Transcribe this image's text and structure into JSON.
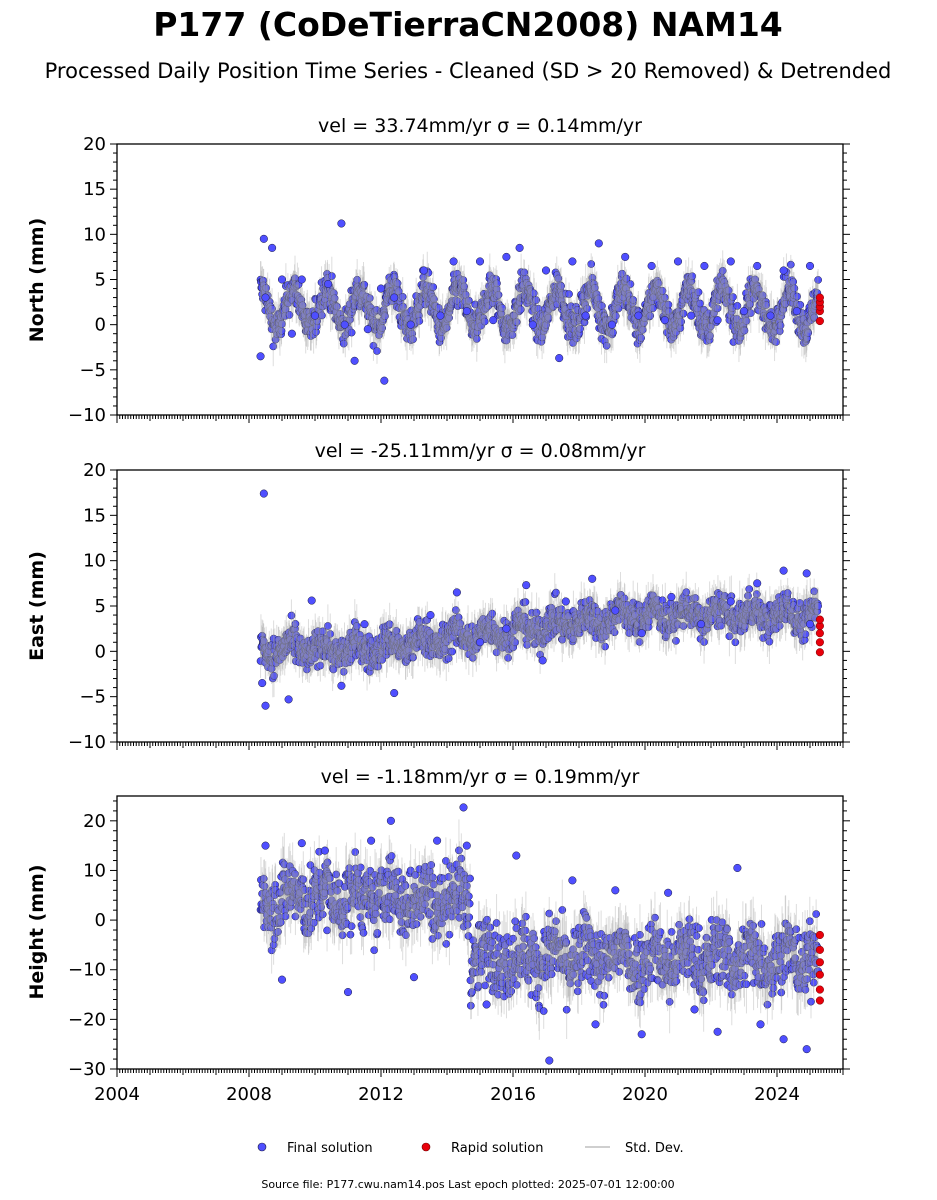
{
  "figure": {
    "title": "P177 (CoDeTierraCN2008) NAM14",
    "subtitle": "Processed Daily Position Time Series - Cleaned (SD > 20 Removed) & Detrended",
    "footer": "Source file: P177.cwu.nam14.pos  Last epoch plotted: 2025-07-01 12:00:00"
  },
  "colors": {
    "final": "#4f4fff",
    "final_edge": "#1a1a40",
    "rapid": "#e8000b",
    "stddev": "#9e9e9e"
  },
  "legend": {
    "final": "Final solution",
    "rapid": "Rapid solution",
    "stddev": "Std. Dev."
  },
  "chart_data": [
    {
      "type": "scatter",
      "title": "vel = 33.74mm/yr   σ = 0.14mm/yr",
      "ylabel": "North (mm)",
      "xlim": [
        2004,
        2026
      ],
      "ylim": [
        -10,
        20
      ],
      "yticks": [
        -10,
        -5,
        0,
        5,
        10,
        15,
        20
      ],
      "xticks": [
        2004,
        2008,
        2012,
        2016,
        2020,
        2024
      ],
      "x_tick_labels_shown": false,
      "series": [
        {
          "name": "Final solution",
          "x_range": [
            2008.35,
            2025.25
          ],
          "trend": "seasonal oscillation ~2 mm around 2 mm",
          "x": [
            2008.35,
            2008.45,
            2008.5,
            2008.7,
            2009.0,
            2009.3,
            2009.6,
            2010.0,
            2010.4,
            2010.8,
            2010.9,
            2011.2,
            2011.6,
            2012.0,
            2012.1,
            2012.4,
            2012.9,
            2013.3,
            2013.8,
            2014.2,
            2014.6,
            2015.0,
            2015.4,
            2015.8,
            2016.2,
            2016.6,
            2017.0,
            2017.4,
            2017.8,
            2018.2,
            2018.6,
            2019.0,
            2019.4,
            2019.8,
            2020.2,
            2020.6,
            2021.0,
            2021.4,
            2021.8,
            2022.2,
            2022.6,
            2023.0,
            2023.4,
            2023.8,
            2024.2,
            2024.6,
            2025.0
          ],
          "y": [
            -3.5,
            9.5,
            3.0,
            8.5,
            5.0,
            -1.0,
            5.0,
            1.0,
            4.5,
            11.2,
            0.0,
            -4.0,
            -0.5,
            4.0,
            -6.2,
            3.0,
            0.0,
            6.0,
            1.0,
            7.0,
            1.5,
            7.0,
            0.5,
            7.5,
            8.5,
            0.0,
            6.0,
            -3.7,
            7.0,
            1.0,
            9.0,
            0.0,
            7.5,
            1.0,
            6.5,
            0.5,
            7.0,
            1.0,
            6.5,
            0.5,
            7.0,
            1.5,
            6.5,
            1.0,
            6.0,
            1.5,
            6.5
          ]
        },
        {
          "name": "Rapid solution",
          "x": [
            2025.3,
            2025.3,
            2025.3,
            2025.3,
            2025.3
          ],
          "y": [
            0.4,
            1.5,
            2.0,
            2.5,
            3.0
          ]
        }
      ]
    },
    {
      "type": "scatter",
      "title": "vel = -25.11mm/yr   σ = 0.08mm/yr",
      "ylabel": "East (mm)",
      "xlim": [
        2004,
        2026
      ],
      "ylim": [
        -10,
        20
      ],
      "yticks": [
        -10,
        -5,
        0,
        5,
        10,
        15,
        20
      ],
      "xticks": [
        2004,
        2008,
        2012,
        2016,
        2020,
        2024
      ],
      "x_tick_labels_shown": false,
      "series": [
        {
          "name": "Final solution",
          "x_range": [
            2008.35,
            2025.25
          ],
          "trend": "rises from ~0 mm to ~4 mm",
          "x": [
            2008.45,
            2008.5,
            2008.4,
            2009.2,
            2009.9,
            2010.8,
            2011.5,
            2012.4,
            2013.5,
            2014.3,
            2015.0,
            2015.8,
            2016.4,
            2016.9,
            2017.6,
            2018.4,
            2019.1,
            2019.9,
            2020.8,
            2021.7,
            2022.6,
            2023.4,
            2024.2,
            2024.9,
            2025.0
          ],
          "y": [
            17.4,
            -6.0,
            -3.5,
            -5.3,
            5.6,
            -3.8,
            3.0,
            -4.6,
            4.0,
            6.5,
            1.0,
            2.5,
            7.3,
            -1.0,
            5.5,
            8.0,
            4.5,
            2.0,
            6.0,
            3.0,
            5.5,
            7.5,
            8.9,
            8.6,
            3.0
          ]
        },
        {
          "name": "Rapid solution",
          "x": [
            2025.3,
            2025.3,
            2025.3,
            2025.3,
            2025.3
          ],
          "y": [
            -0.1,
            1.0,
            2.0,
            2.8,
            3.5
          ]
        }
      ]
    },
    {
      "type": "scatter",
      "title": "vel = -1.18mm/yr   σ = 0.19mm/yr",
      "ylabel": "Height (mm)",
      "xlim": [
        2004,
        2026
      ],
      "ylim": [
        -30,
        25
      ],
      "yticks": [
        -30,
        -20,
        -10,
        0,
        10,
        20
      ],
      "xticks": [
        2004,
        2008,
        2012,
        2016,
        2020,
        2024
      ],
      "x_tick_labels_shown": true,
      "series": [
        {
          "name": "Final solution",
          "x_range": [
            2008.35,
            2025.25
          ],
          "trend": "~5 mm until 2014.7, step down to ~-8 mm afterwards",
          "x": [
            2008.5,
            2009.0,
            2009.6,
            2010.3,
            2011.0,
            2011.7,
            2012.3,
            2013.0,
            2013.7,
            2014.5,
            2014.6,
            2015.2,
            2016.1,
            2017.1,
            2017.8,
            2018.5,
            2019.1,
            2019.9,
            2020.7,
            2021.5,
            2022.2,
            2022.8,
            2023.5,
            2024.2,
            2024.9
          ],
          "y": [
            15.0,
            -12.0,
            15.5,
            14.0,
            -14.5,
            16.0,
            20.0,
            -11.5,
            16.0,
            22.7,
            15.0,
            -17.0,
            13.0,
            -28.3,
            8.0,
            -21.0,
            6.0,
            -23.0,
            5.5,
            -18.0,
            -22.5,
            10.5,
            -21.0,
            -24.0,
            -26.0
          ]
        },
        {
          "name": "Rapid solution",
          "x": [
            2025.3,
            2025.3,
            2025.3,
            2025.3,
            2025.3,
            2025.3
          ],
          "y": [
            -16.2,
            -14.0,
            -11.0,
            -8.5,
            -6.0,
            -3.0
          ]
        }
      ]
    }
  ]
}
